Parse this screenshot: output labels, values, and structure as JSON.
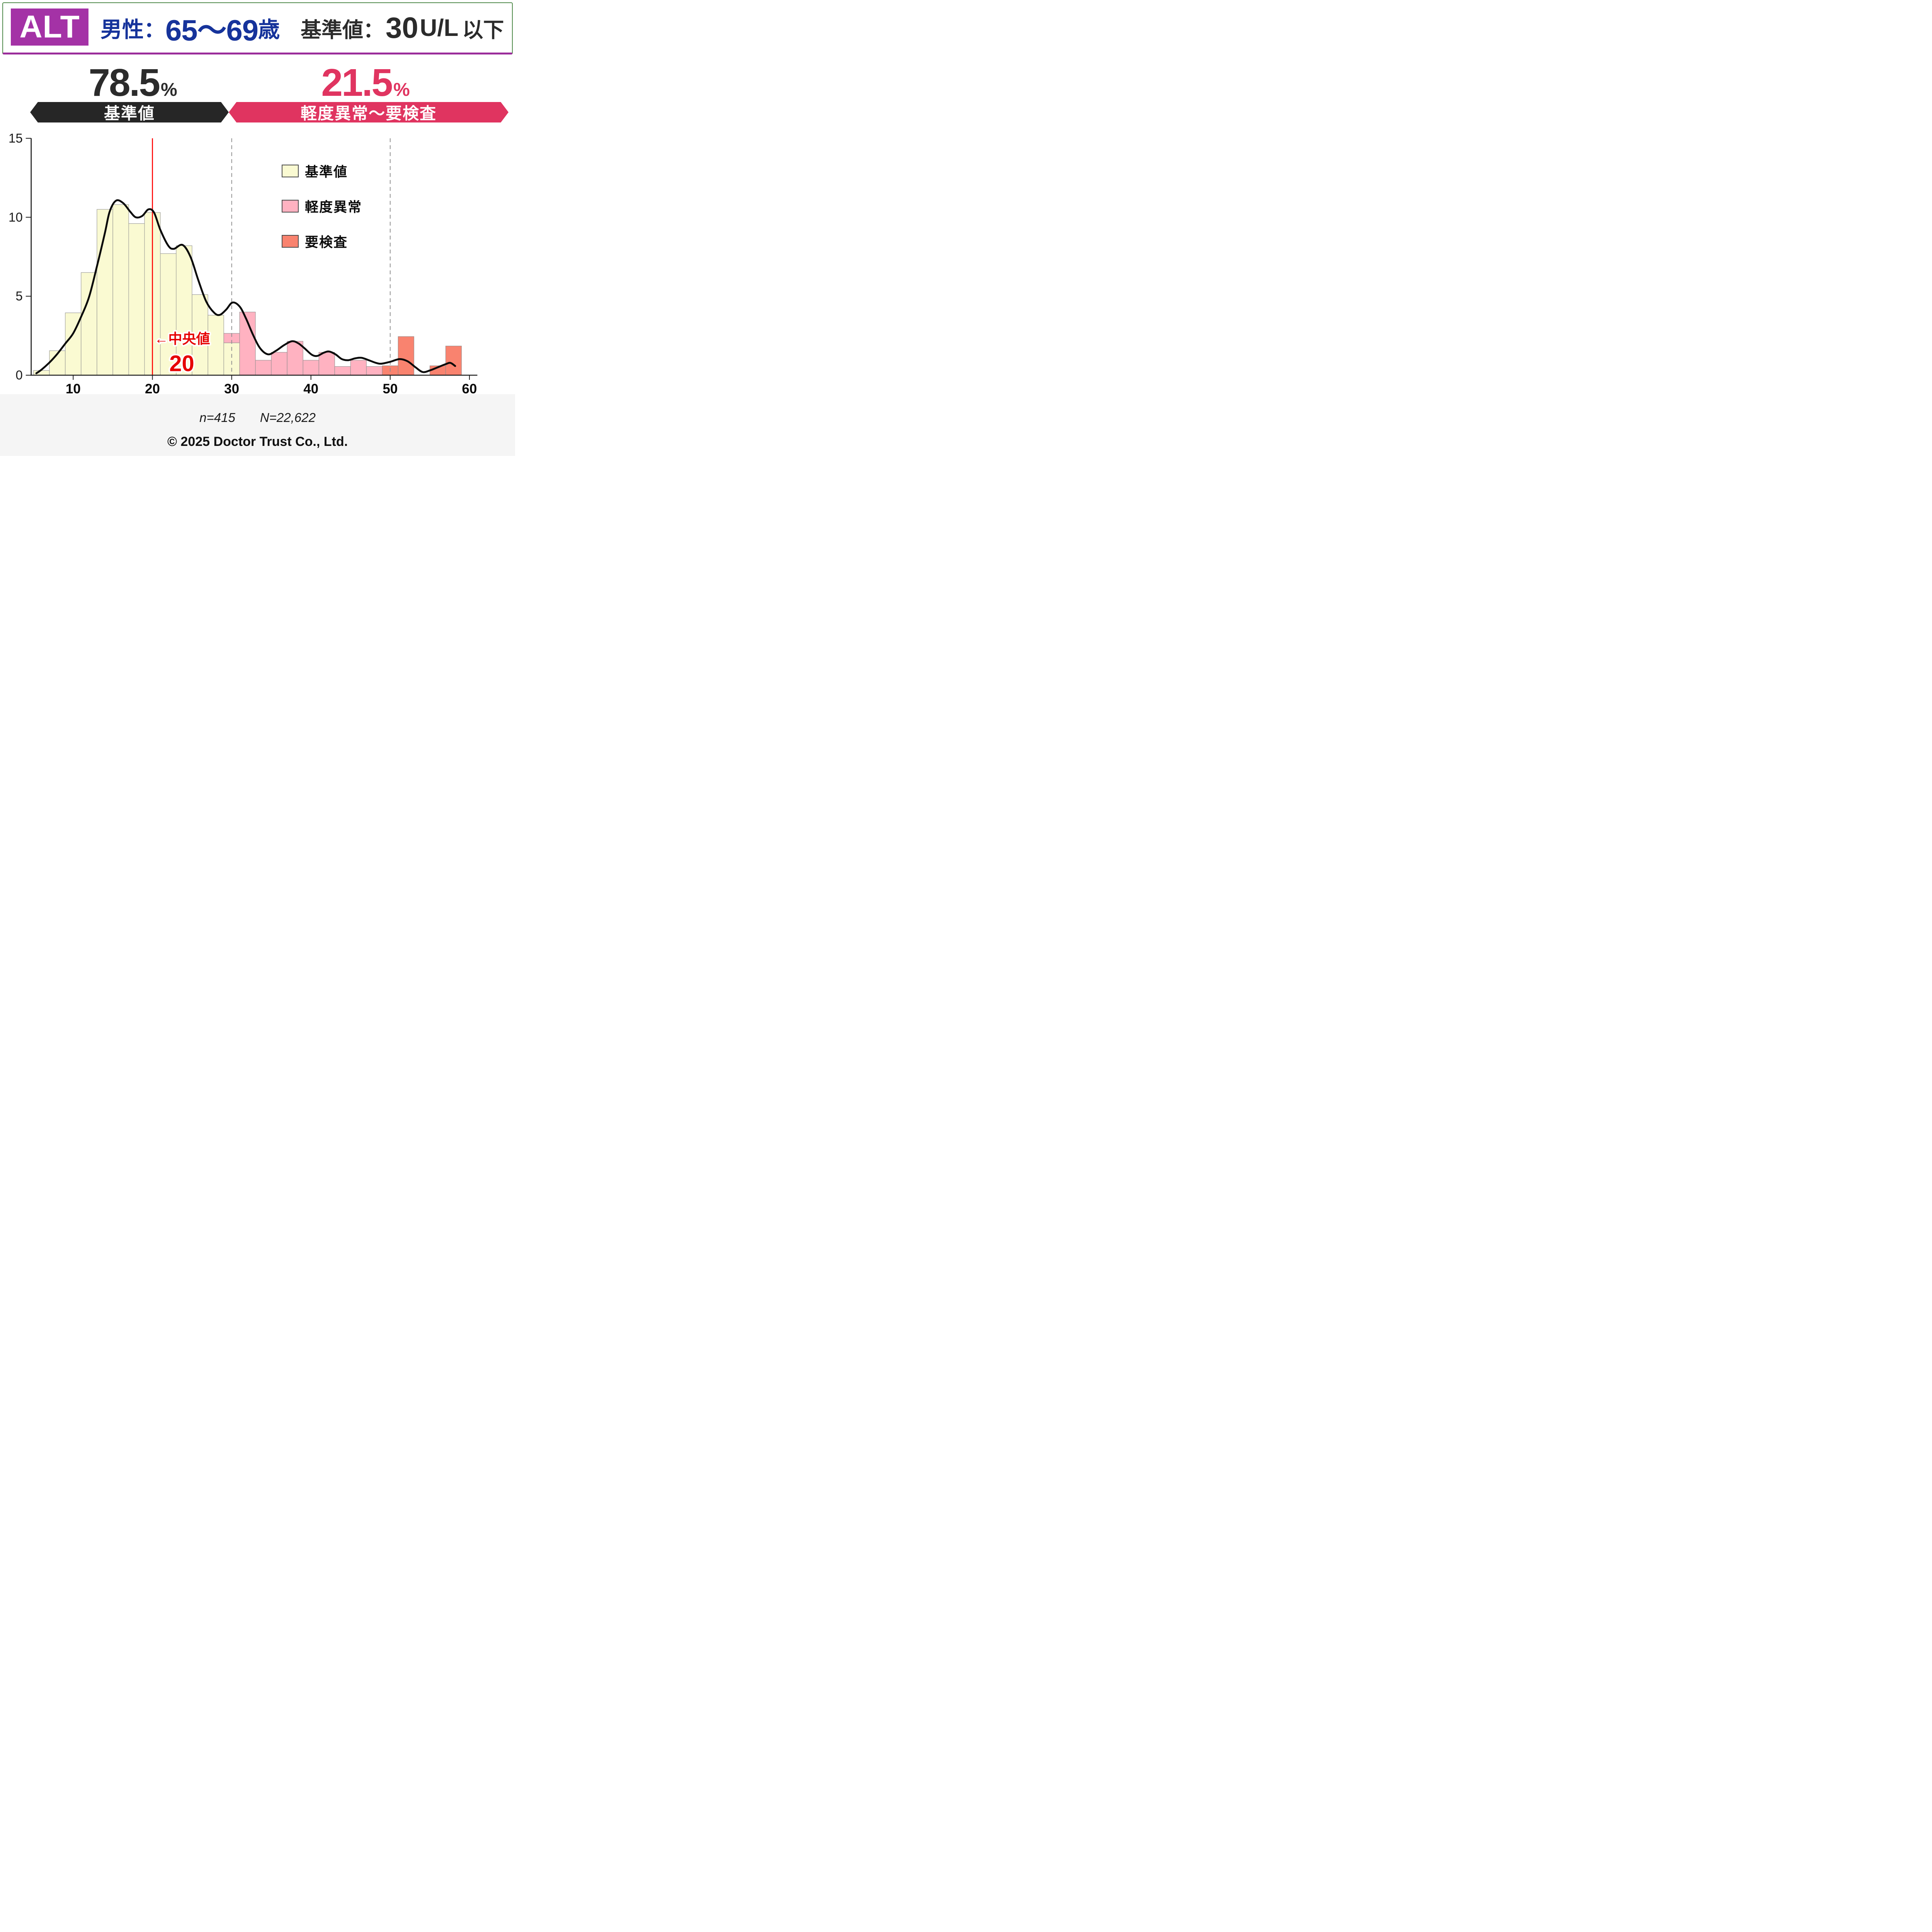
{
  "header": {
    "test_name": "ALT",
    "population": {
      "prefix": "男性：",
      "range": "65～69",
      "suffix": "歳"
    },
    "reference": {
      "label": "基準値：",
      "value": "30",
      "unit": "U/L",
      "qualifier": "以下"
    }
  },
  "summary": {
    "normal": {
      "value": "78.5",
      "unit": "%",
      "banner_label": "基準値",
      "text_color": "#2b2b2b",
      "banner_color": "#262626"
    },
    "abnormal": {
      "value": "21.5",
      "unit": "%",
      "banner_label": "軽度異常～要検査",
      "text_color": "#e03460",
      "banner_color": "#e03460"
    }
  },
  "legend": [
    {
      "label": "基準値",
      "color": "#fafad2"
    },
    {
      "label": "軽度異常",
      "color": "#ffb2c1"
    },
    {
      "label": "要検査",
      "color": "#f9836f"
    }
  ],
  "chart_data": {
    "type": "bar",
    "subtype": "histogram-with-density-curve",
    "title": "ALT distribution, males 65-69",
    "xlabel": "",
    "ylabel": "",
    "xlim": [
      4.7,
      61
    ],
    "ylim": [
      0,
      15
    ],
    "x_ticks": [
      10,
      20,
      30,
      40,
      50,
      60
    ],
    "y_ticks": [
      0,
      5,
      10,
      15
    ],
    "grid": false,
    "legend_position": "upper-middle-right",
    "bin_width": 2,
    "colors": {
      "cream": "#fafad2",
      "mild": "#ffb2c1",
      "severe": "#f9836f"
    },
    "median_line": {
      "x": 20,
      "color": "#ff0000",
      "arrow_label": "←中央値",
      "number": "20"
    },
    "threshold_lines": {
      "x": [
        30,
        50
      ],
      "style": "dashed",
      "color": "#909090"
    },
    "bars": [
      {
        "start": 5,
        "segments": [
          [
            "cream",
            0.3
          ]
        ]
      },
      {
        "start": 7,
        "segments": [
          [
            "cream",
            1.55
          ]
        ]
      },
      {
        "start": 9,
        "segments": [
          [
            "cream",
            3.95
          ]
        ]
      },
      {
        "start": 11,
        "segments": [
          [
            "cream",
            6.5
          ]
        ]
      },
      {
        "start": 13,
        "segments": [
          [
            "cream",
            10.5
          ]
        ]
      },
      {
        "start": 15,
        "segments": [
          [
            "cream",
            10.8
          ]
        ]
      },
      {
        "start": 17,
        "segments": [
          [
            "cream",
            9.6
          ]
        ]
      },
      {
        "start": 19,
        "segments": [
          [
            "cream",
            10.3
          ]
        ]
      },
      {
        "start": 21,
        "segments": [
          [
            "cream",
            7.7
          ]
        ]
      },
      {
        "start": 23,
        "segments": [
          [
            "cream",
            8.2
          ]
        ]
      },
      {
        "start": 25,
        "segments": [
          [
            "cream",
            5.1
          ]
        ]
      },
      {
        "start": 27,
        "segments": [
          [
            "cream",
            3.8
          ]
        ]
      },
      {
        "start": 29,
        "segments": [
          [
            "cream",
            2.05
          ],
          [
            "mild",
            0.6
          ]
        ]
      },
      {
        "start": 31,
        "segments": [
          [
            "mild",
            4.0
          ]
        ]
      },
      {
        "start": 33,
        "segments": [
          [
            "mild",
            0.95
          ]
        ]
      },
      {
        "start": 35,
        "segments": [
          [
            "mild",
            1.45
          ]
        ]
      },
      {
        "start": 37,
        "segments": [
          [
            "mild",
            2.15
          ]
        ]
      },
      {
        "start": 39,
        "segments": [
          [
            "mild",
            0.95
          ]
        ]
      },
      {
        "start": 41,
        "segments": [
          [
            "mild",
            1.45
          ]
        ]
      },
      {
        "start": 43,
        "segments": [
          [
            "mild",
            0.55
          ]
        ]
      },
      {
        "start": 45,
        "segments": [
          [
            "mild",
            0.95
          ]
        ]
      },
      {
        "start": 47,
        "segments": [
          [
            "mild",
            0.55
          ]
        ]
      },
      {
        "start": 49,
        "segments": [
          [
            "severe",
            0.6
          ]
        ]
      },
      {
        "start": 51,
        "segments": [
          [
            "severe",
            2.45
          ]
        ]
      },
      {
        "start": 55,
        "segments": [
          [
            "severe",
            0.6
          ]
        ]
      },
      {
        "start": 57,
        "segments": [
          [
            "severe",
            1.85
          ]
        ]
      }
    ],
    "density_curve": [
      [
        5.35,
        0.12
      ],
      [
        6,
        0.35
      ],
      [
        7,
        0.8
      ],
      [
        8,
        1.35
      ],
      [
        9,
        2.0
      ],
      [
        10,
        2.65
      ],
      [
        11,
        3.7
      ],
      [
        12,
        4.95
      ],
      [
        13,
        6.9
      ],
      [
        14,
        9.0
      ],
      [
        14.6,
        10.35
      ],
      [
        15.4,
        11.05
      ],
      [
        16.3,
        10.9
      ],
      [
        17.2,
        10.35
      ],
      [
        17.9,
        10.0
      ],
      [
        18.7,
        10.08
      ],
      [
        19.5,
        10.5
      ],
      [
        20.2,
        10.3
      ],
      [
        21,
        9.2
      ],
      [
        22,
        8.2
      ],
      [
        22.7,
        8.0
      ],
      [
        23.8,
        8.25
      ],
      [
        24.8,
        7.5
      ],
      [
        25.8,
        6.0
      ],
      [
        26.8,
        4.65
      ],
      [
        27.8,
        3.95
      ],
      [
        28.5,
        3.82
      ],
      [
        29.3,
        4.15
      ],
      [
        30.1,
        4.6
      ],
      [
        31,
        4.35
      ],
      [
        31.8,
        3.6
      ],
      [
        32.7,
        2.55
      ],
      [
        33.6,
        1.7
      ],
      [
        34.6,
        1.32
      ],
      [
        35.6,
        1.55
      ],
      [
        36.6,
        1.9
      ],
      [
        37.6,
        2.15
      ],
      [
        38.4,
        2.02
      ],
      [
        39.2,
        1.7
      ],
      [
        40.1,
        1.3
      ],
      [
        40.8,
        1.22
      ],
      [
        41.6,
        1.42
      ],
      [
        42.3,
        1.5
      ],
      [
        43.1,
        1.32
      ],
      [
        43.9,
        1.02
      ],
      [
        44.7,
        0.95
      ],
      [
        45.6,
        1.07
      ],
      [
        46.4,
        1.1
      ],
      [
        47.3,
        0.95
      ],
      [
        48.2,
        0.78
      ],
      [
        48.9,
        0.73
      ],
      [
        50,
        0.85
      ],
      [
        51.2,
        1.02
      ],
      [
        52.2,
        0.88
      ],
      [
        53.2,
        0.5
      ],
      [
        54.1,
        0.2
      ],
      [
        55,
        0.3
      ],
      [
        56,
        0.5
      ],
      [
        57,
        0.7
      ],
      [
        57.6,
        0.78
      ],
      [
        58.2,
        0.58
      ]
    ]
  },
  "footer": {
    "n": "n=415",
    "N": "N=22,622",
    "copyright": "© 2025 Doctor Trust Co., Ltd."
  }
}
